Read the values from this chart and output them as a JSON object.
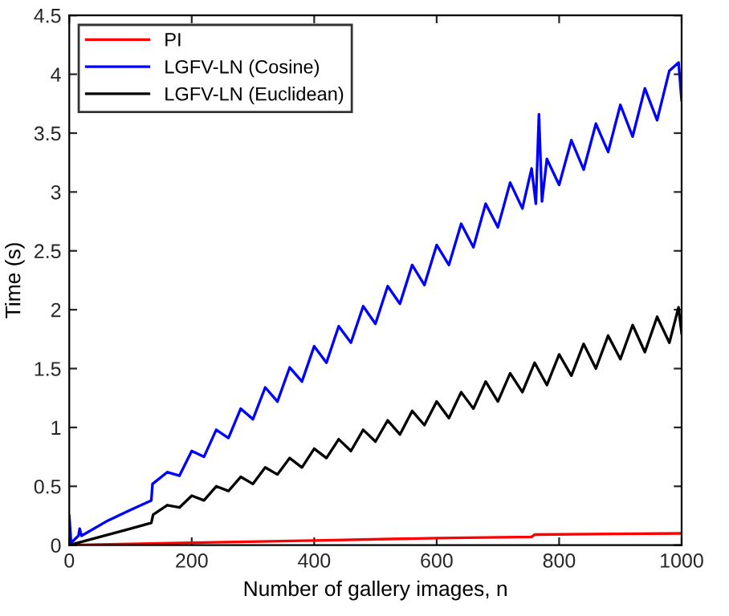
{
  "chart_data": {
    "type": "line",
    "xlabel": "Number of gallery images, n",
    "ylabel": "Time (s)",
    "xlim": [
      0,
      1000
    ],
    "xticks": [
      0,
      200,
      400,
      600,
      800,
      1000
    ],
    "ylim": [
      0,
      4.5
    ],
    "yticks": [
      0,
      0.5,
      1,
      1.5,
      2,
      2.5,
      3,
      3.5,
      4,
      4.5
    ],
    "grid": false,
    "legend": "top left",
    "marker": "none",
    "line_style": "solid",
    "series": [
      {
        "name": "PI",
        "color": "#ff0000",
        "x": [
          0,
          200,
          400,
          600,
          755,
          760,
          1000
        ],
        "values": [
          0,
          0.02,
          0.04,
          0.06,
          0.07,
          0.09,
          0.1
        ]
      },
      {
        "name": "LGFV-LN (Cosine)",
        "color": "#0000ff",
        "x": [
          0,
          3,
          15,
          17,
          20,
          60,
          100,
          134,
          136,
          160,
          180,
          200,
          220,
          240,
          260,
          280,
          300,
          320,
          340,
          360,
          380,
          400,
          420,
          440,
          460,
          480,
          500,
          520,
          540,
          560,
          580,
          600,
          620,
          640,
          660,
          680,
          700,
          720,
          740,
          755,
          762,
          767,
          772,
          780,
          800,
          820,
          840,
          860,
          880,
          900,
          920,
          940,
          960,
          980,
          995,
          1000
        ],
        "values": [
          0.25,
          0.02,
          0.08,
          0.14,
          0.08,
          0.2,
          0.3,
          0.38,
          0.52,
          0.62,
          0.59,
          0.8,
          0.75,
          0.98,
          0.91,
          1.16,
          1.07,
          1.34,
          1.22,
          1.51,
          1.39,
          1.69,
          1.55,
          1.86,
          1.72,
          2.03,
          1.88,
          2.2,
          2.05,
          2.38,
          2.21,
          2.55,
          2.38,
          2.73,
          2.53,
          2.9,
          2.7,
          3.08,
          2.86,
          3.2,
          2.9,
          3.66,
          2.92,
          3.28,
          3.06,
          3.44,
          3.19,
          3.58,
          3.34,
          3.74,
          3.47,
          3.88,
          3.61,
          4.03,
          4.1,
          3.78
        ]
      },
      {
        "name": "LGFV-LN (Euclidean)",
        "color": "#000000",
        "x": [
          0,
          50,
          100,
          134,
          137,
          160,
          180,
          200,
          220,
          240,
          260,
          280,
          300,
          320,
          340,
          360,
          380,
          400,
          420,
          440,
          460,
          480,
          500,
          520,
          540,
          560,
          580,
          600,
          620,
          640,
          660,
          680,
          700,
          720,
          740,
          760,
          780,
          800,
          820,
          840,
          860,
          880,
          900,
          920,
          940,
          960,
          980,
          995,
          1000
        ],
        "values": [
          0,
          0.07,
          0.14,
          0.19,
          0.26,
          0.34,
          0.32,
          0.42,
          0.38,
          0.5,
          0.46,
          0.58,
          0.52,
          0.66,
          0.6,
          0.74,
          0.66,
          0.82,
          0.74,
          0.9,
          0.8,
          0.98,
          0.88,
          1.06,
          0.94,
          1.14,
          1.02,
          1.22,
          1.08,
          1.3,
          1.16,
          1.39,
          1.22,
          1.46,
          1.3,
          1.55,
          1.36,
          1.62,
          1.44,
          1.71,
          1.5,
          1.78,
          1.58,
          1.87,
          1.64,
          1.94,
          1.72,
          2.02,
          1.8
        ]
      }
    ]
  }
}
